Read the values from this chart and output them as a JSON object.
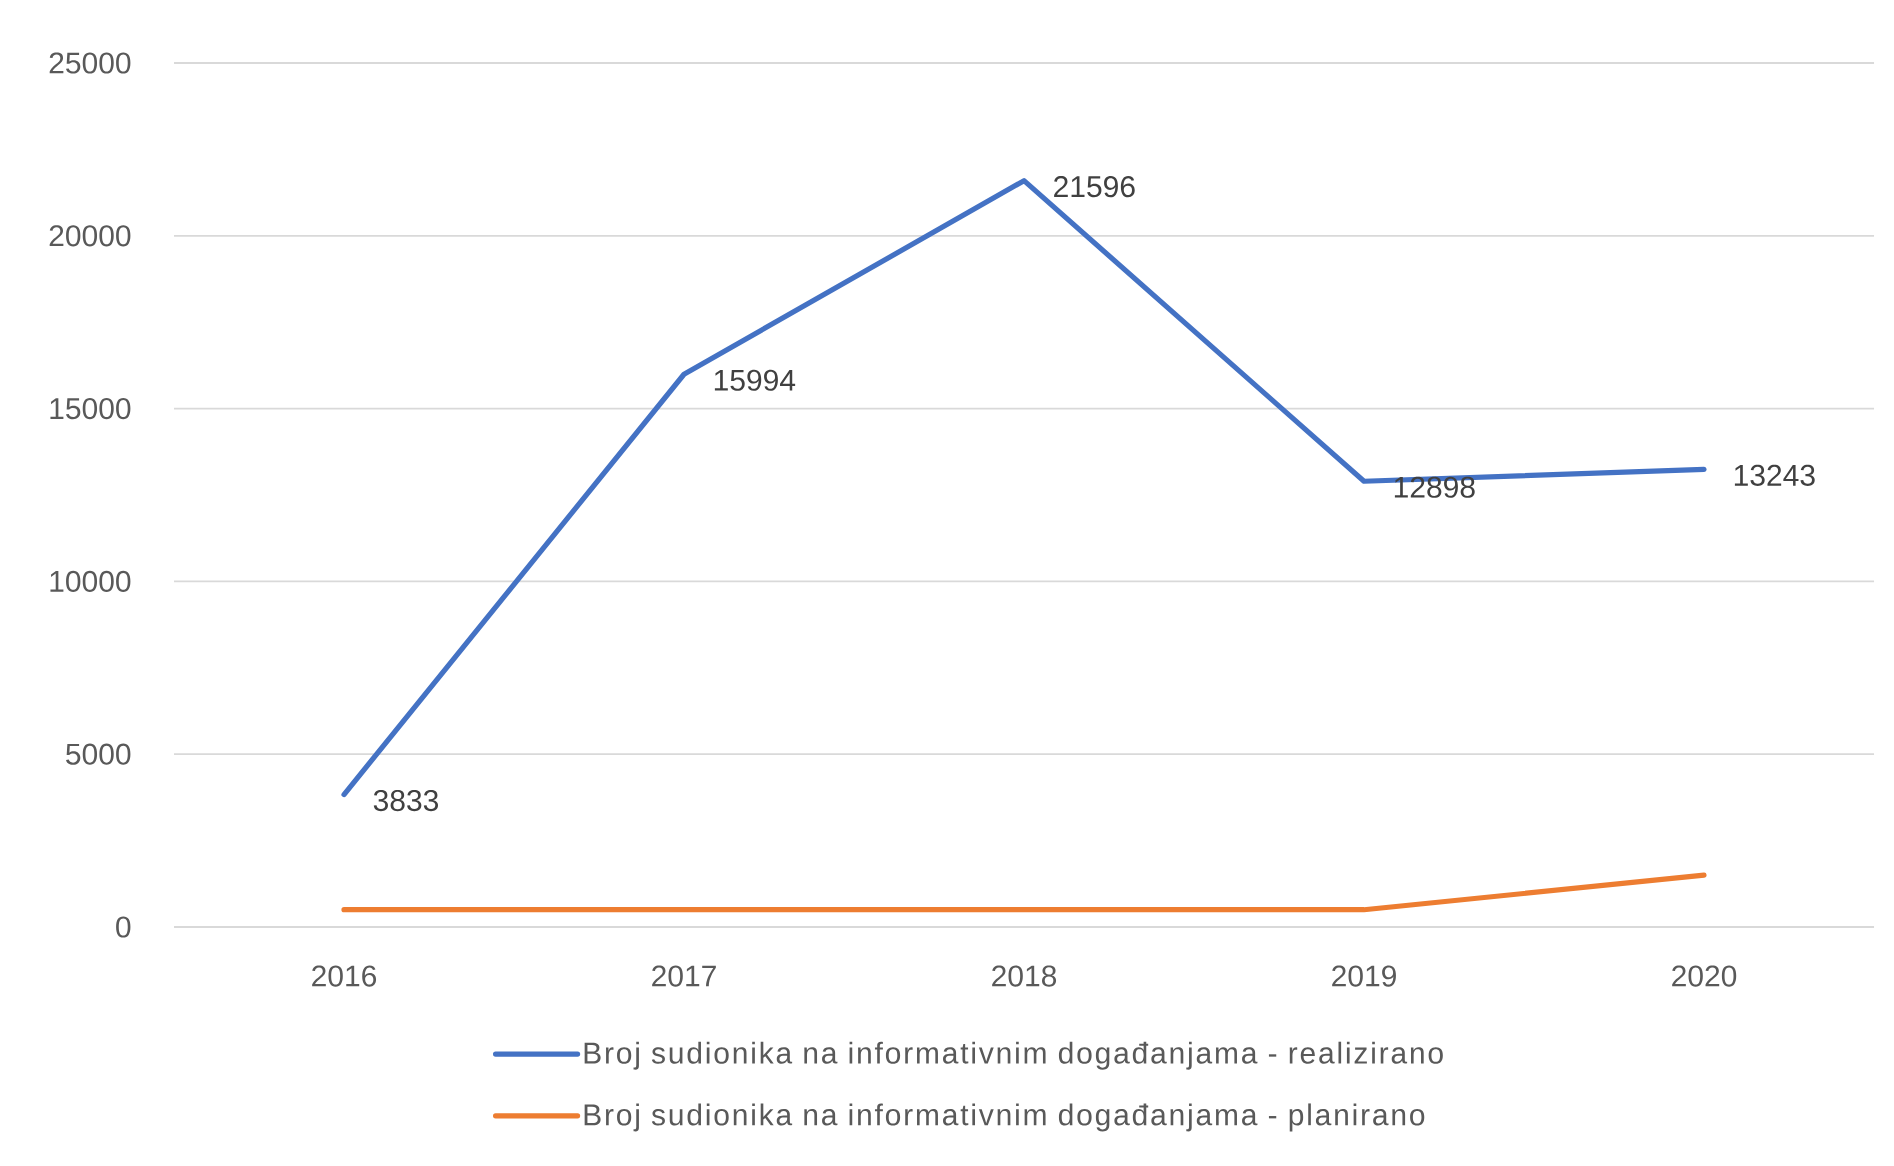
{
  "chart_data": {
    "type": "line",
    "categories": [
      "2016",
      "2017",
      "2018",
      "2019",
      "2020"
    ],
    "series": [
      {
        "name": "Broj sudionika na informativnim događanjama - realizirano",
        "color": "#4472c4",
        "values": [
          3833,
          15994,
          21596,
          12898,
          13243
        ],
        "value_labels": [
          "3833",
          "15994",
          "21596",
          "12898",
          "13243"
        ]
      },
      {
        "name": "Broj sudionika na informativnim događanjama - planirano",
        "color": "#ed7d31",
        "values": [
          500,
          500,
          500,
          500,
          1500
        ]
      }
    ],
    "ylim": [
      0,
      25000
    ],
    "yticks": [
      0,
      5000,
      10000,
      15000,
      20000,
      25000
    ],
    "grid": "y",
    "legend": "bottom",
    "marker": "none",
    "line_style": "solid"
  }
}
